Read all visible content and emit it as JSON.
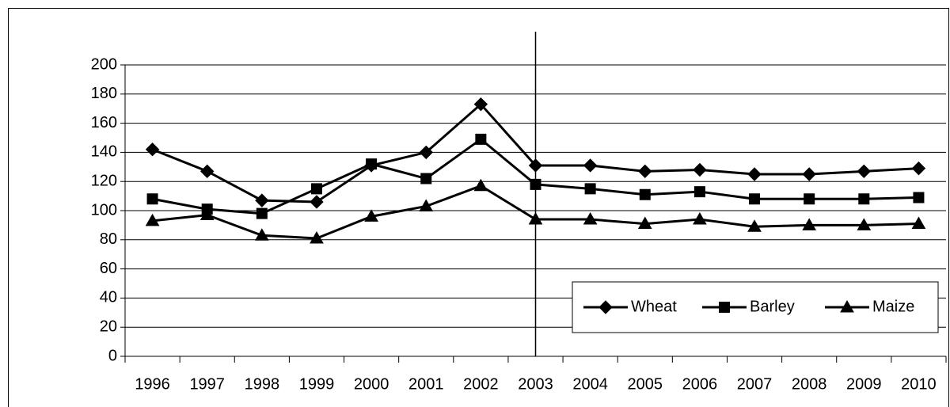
{
  "chart_data": {
    "type": "line",
    "categories": [
      "1996",
      "1997",
      "1998",
      "1999",
      "2000",
      "2001",
      "2002",
      "2003",
      "2004",
      "2005",
      "2006",
      "2007",
      "2008",
      "2009",
      "2010"
    ],
    "series": [
      {
        "name": "Wheat",
        "color": "#000000",
        "marker": "diamond",
        "values": [
          142,
          127,
          107,
          106,
          131,
          140,
          173,
          131,
          131,
          127,
          128,
          125,
          125,
          127,
          129
        ]
      },
      {
        "name": "Barley",
        "color": "#000000",
        "marker": "square",
        "values": [
          108,
          101,
          98,
          115,
          132,
          122,
          149,
          118,
          115,
          111,
          113,
          108,
          108,
          108,
          109
        ]
      },
      {
        "name": "Maize",
        "color": "#000000",
        "marker": "triangle",
        "values": [
          93,
          97,
          83,
          81,
          96,
          103,
          117,
          94,
          94,
          91,
          94,
          89,
          90,
          90,
          91
        ]
      }
    ],
    "ylim": [
      0,
      200
    ],
    "yticks": [
      0,
      20,
      40,
      60,
      80,
      100,
      120,
      140,
      160,
      180,
      200
    ],
    "grid": true,
    "legend": "lower right",
    "vertical_line_at": "2003"
  }
}
